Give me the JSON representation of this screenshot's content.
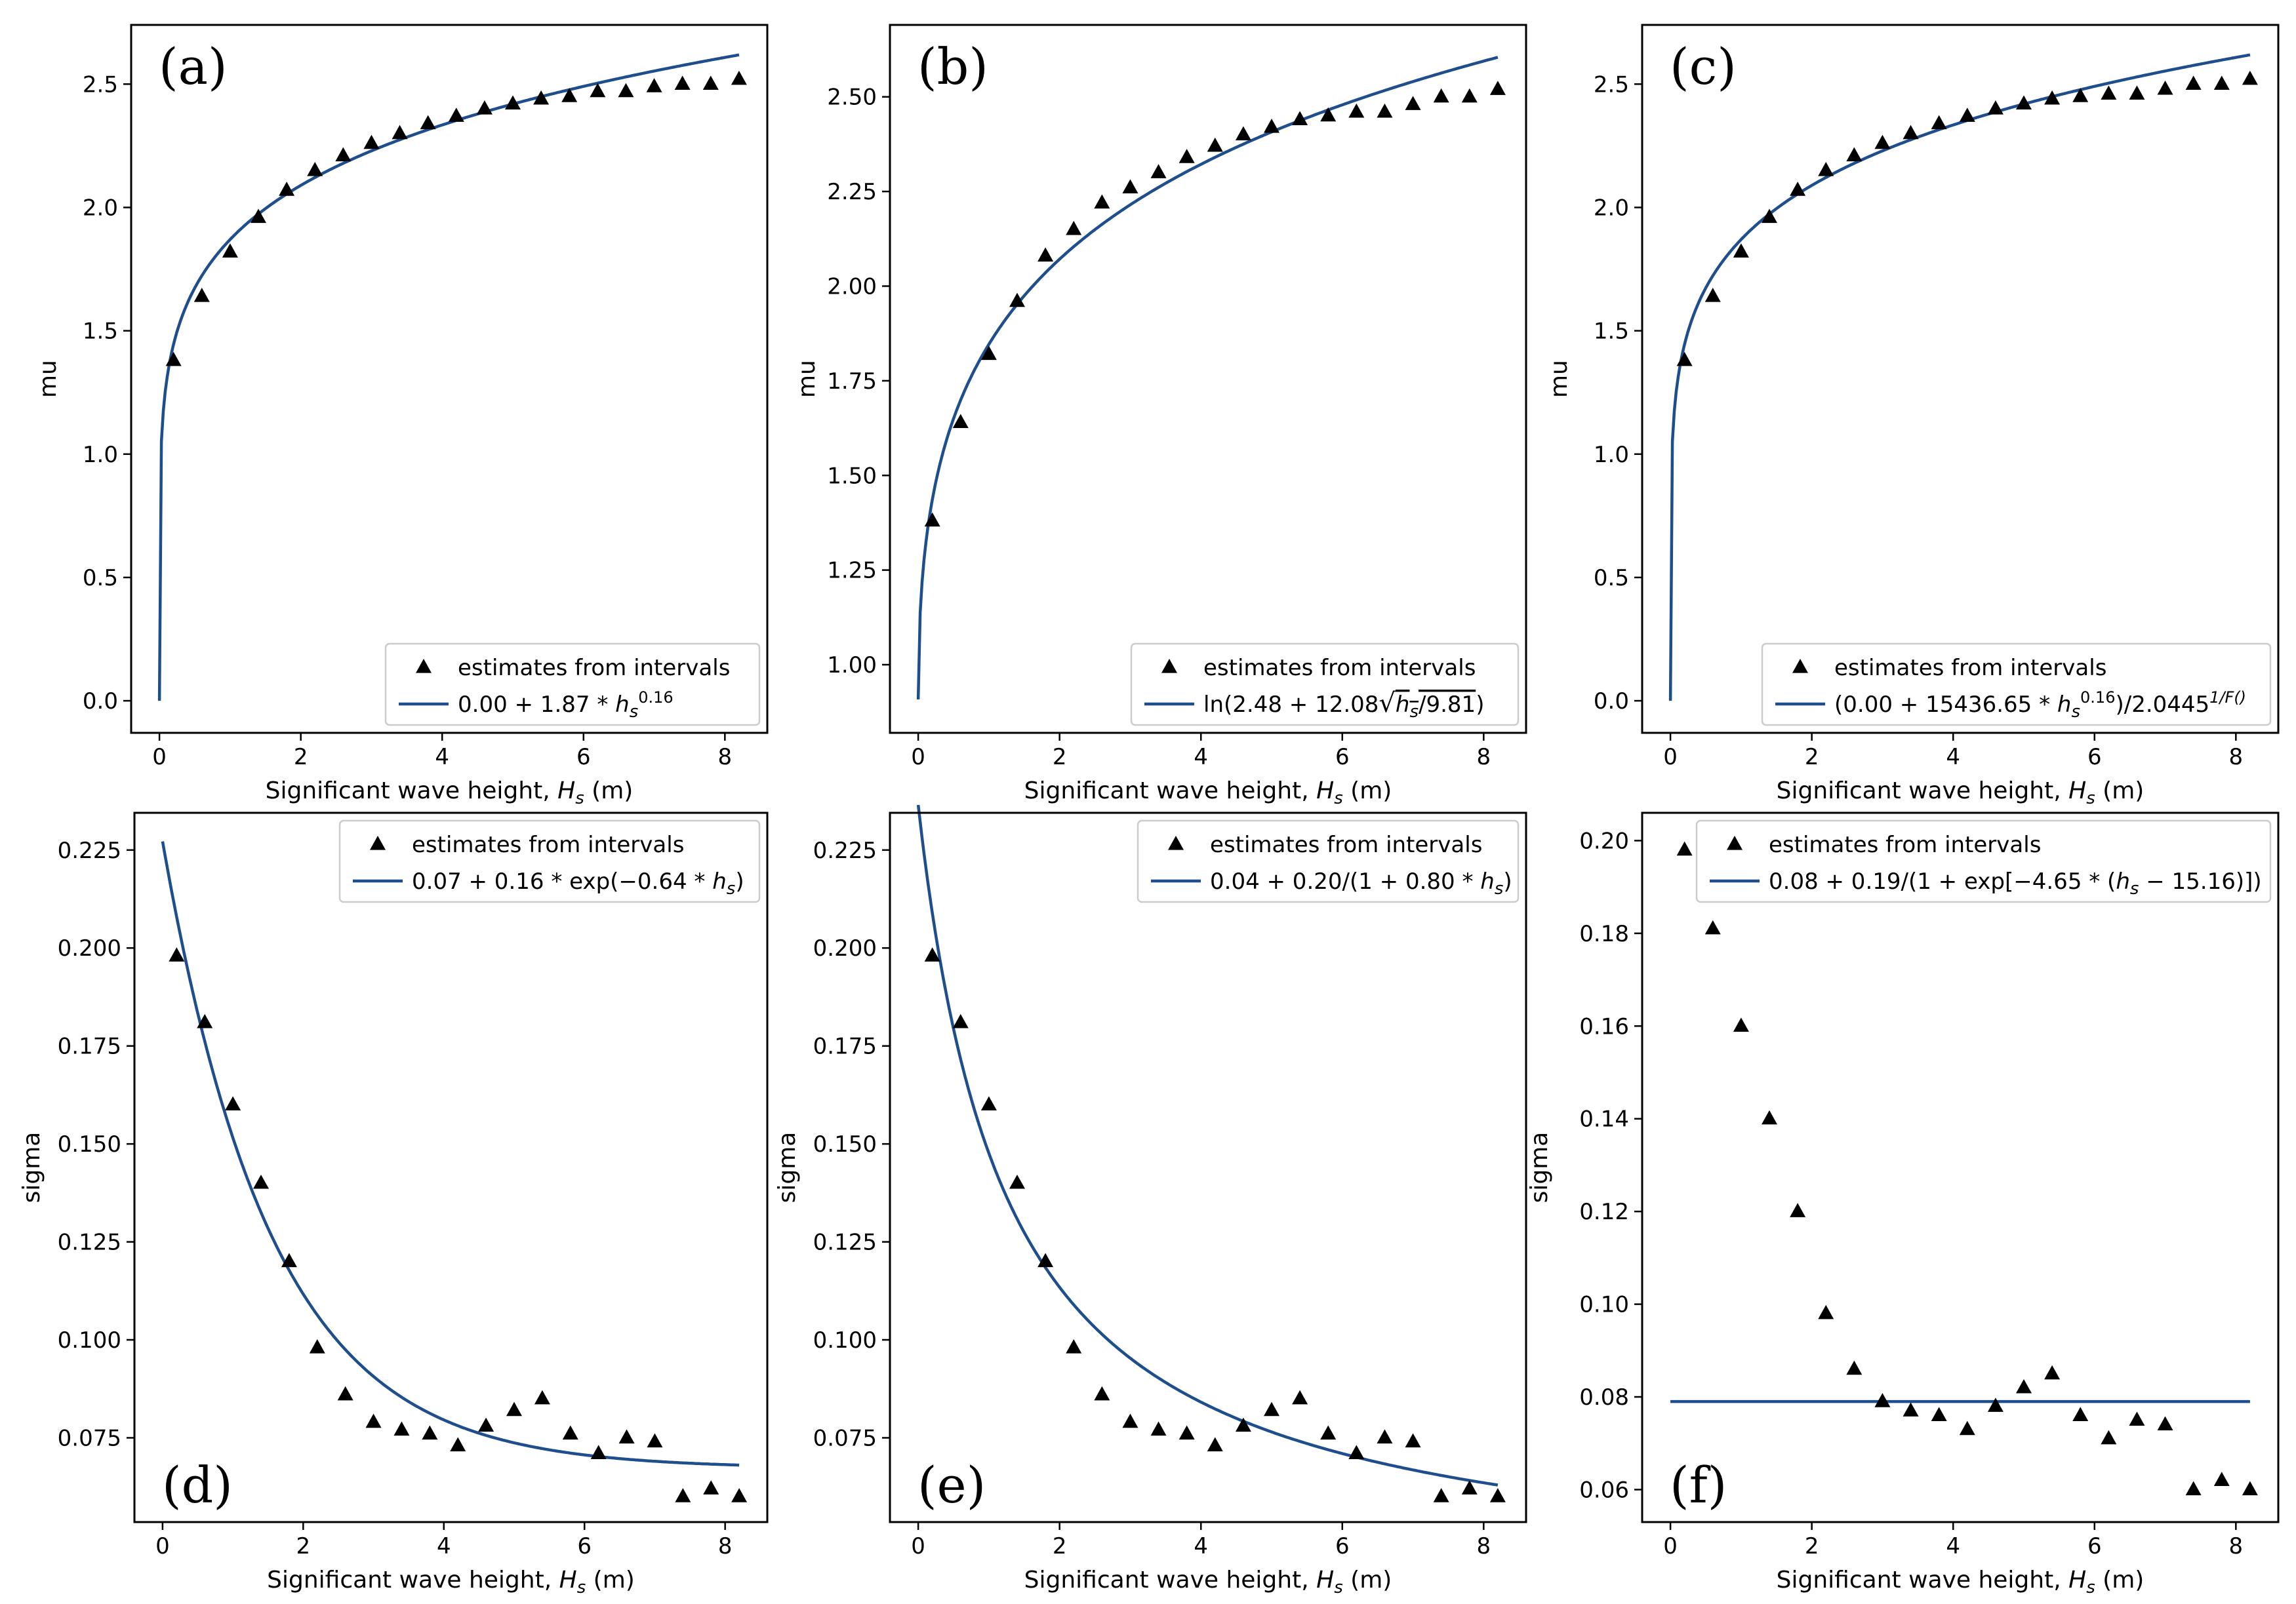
{
  "legend_points_label": "estimates from intervals",
  "colors": {
    "line": "#1f4e8c",
    "markers": "#000000",
    "axes": "#000000"
  },
  "chart_data": [
    {
      "panel": "(a)",
      "type": "scatter",
      "xlabel": "Significant wave height, H_s (m)",
      "ylabel": "mu",
      "xlim": [
        -0.4,
        8.6
      ],
      "ylim": [
        -0.13,
        2.74
      ],
      "xticks": [
        0,
        2,
        4,
        6,
        8
      ],
      "yticks": [
        0.0,
        0.5,
        1.0,
        1.5,
        2.0,
        2.5
      ],
      "ytick_labels": [
        "0.0",
        "0.5",
        "1.0",
        "1.5",
        "2.0",
        "2.5"
      ],
      "legend_position": "bottom-right",
      "series": [
        {
          "name": "estimates from intervals",
          "type": "scatter",
          "x": [
            0.2,
            0.6,
            1.0,
            1.4,
            1.8,
            2.2,
            2.6,
            3.0,
            3.4,
            3.8,
            4.2,
            4.6,
            5.0,
            5.4,
            5.8,
            6.2,
            6.6,
            7.0,
            7.4,
            7.8,
            8.2
          ],
          "y": [
            1.38,
            1.64,
            1.82,
            1.96,
            2.07,
            2.15,
            2.21,
            2.26,
            2.3,
            2.34,
            2.37,
            2.4,
            2.42,
            2.44,
            2.45,
            2.47,
            2.47,
            2.49,
            2.5,
            2.5,
            2.52
          ]
        },
        {
          "name": "0.00 + 1.87 * h_s^0.16",
          "type": "line",
          "formula": {
            "kind": "power",
            "a": 0.0,
            "b": 1.87,
            "c": 0.16
          },
          "x_range": [
            0.0,
            8.2
          ]
        }
      ]
    },
    {
      "panel": "(b)",
      "type": "scatter",
      "xlabel": "Significant wave height, H_s (m)",
      "ylabel": "mu",
      "xlim": [
        -0.4,
        8.6
      ],
      "ylim": [
        0.82,
        2.69
      ],
      "xticks": [
        0,
        2,
        4,
        6,
        8
      ],
      "yticks": [
        1.0,
        1.25,
        1.5,
        1.75,
        2.0,
        2.25,
        2.5
      ],
      "ytick_labels": [
        "1.00",
        "1.25",
        "1.50",
        "1.75",
        "2.00",
        "2.25",
        "2.50"
      ],
      "legend_position": "bottom-right",
      "series": [
        {
          "name": "estimates from intervals",
          "type": "scatter",
          "x": [
            0.2,
            0.6,
            1.0,
            1.4,
            1.8,
            2.2,
            2.6,
            3.0,
            3.4,
            3.8,
            4.2,
            4.6,
            5.0,
            5.4,
            5.8,
            6.2,
            6.6,
            7.0,
            7.4,
            7.8,
            8.2
          ],
          "y": [
            1.38,
            1.64,
            1.82,
            1.96,
            2.08,
            2.15,
            2.22,
            2.26,
            2.3,
            2.34,
            2.37,
            2.4,
            2.42,
            2.44,
            2.45,
            2.46,
            2.46,
            2.48,
            2.5,
            2.5,
            2.52
          ]
        },
        {
          "name": "ln(2.48 + 12.08 √(h_s/9.81))",
          "type": "line",
          "formula": {
            "kind": "logsqrt",
            "a": 2.48,
            "b": 12.08,
            "g": 9.81
          },
          "x_range": [
            0.0,
            8.2
          ]
        }
      ]
    },
    {
      "panel": "(c)",
      "type": "scatter",
      "xlabel": "Significant wave height, H_s (m)",
      "ylabel": "mu",
      "xlim": [
        -0.4,
        8.6
      ],
      "ylim": [
        -0.13,
        2.74
      ],
      "xticks": [
        0,
        2,
        4,
        6,
        8
      ],
      "yticks": [
        0.0,
        0.5,
        1.0,
        1.5,
        2.0,
        2.5
      ],
      "ytick_labels": [
        "0.0",
        "0.5",
        "1.0",
        "1.5",
        "2.0",
        "2.5"
      ],
      "legend_position": "bottom-right",
      "series": [
        {
          "name": "estimates from intervals",
          "type": "scatter",
          "x": [
            0.2,
            0.6,
            1.0,
            1.4,
            1.8,
            2.2,
            2.6,
            3.0,
            3.4,
            3.8,
            4.2,
            4.6,
            5.0,
            5.4,
            5.8,
            6.2,
            6.6,
            7.0,
            7.4,
            7.8,
            8.2
          ],
          "y": [
            1.38,
            1.64,
            1.82,
            1.96,
            2.07,
            2.15,
            2.21,
            2.26,
            2.3,
            2.34,
            2.37,
            2.4,
            2.42,
            2.44,
            2.45,
            2.46,
            2.46,
            2.48,
            2.5,
            2.5,
            2.52
          ]
        },
        {
          "name": "(0.00 + 15436.65 * h_s^0.16)/2.0445^(1/F())",
          "type": "line",
          "formula": {
            "kind": "power",
            "a": 0.0,
            "b": 1.87,
            "c": 0.16
          },
          "x_range": [
            0.0,
            8.2
          ]
        }
      ]
    },
    {
      "panel": "(d)",
      "type": "scatter",
      "xlabel": "Significant wave height, H_s (m)",
      "ylabel": "sigma",
      "xlim": [
        -0.4,
        8.6
      ],
      "ylim": [
        0.0535,
        0.2345
      ],
      "xticks": [
        0,
        2,
        4,
        6,
        8
      ],
      "yticks": [
        0.075,
        0.1,
        0.125,
        0.15,
        0.175,
        0.2,
        0.225
      ],
      "ytick_labels": [
        "0.075",
        "0.100",
        "0.125",
        "0.150",
        "0.175",
        "0.200",
        "0.225"
      ],
      "legend_position": "top-right",
      "series": [
        {
          "name": "estimates from intervals",
          "type": "scatter",
          "x": [
            0.2,
            0.6,
            1.0,
            1.4,
            1.8,
            2.2,
            2.6,
            3.0,
            3.4,
            3.8,
            4.2,
            4.6,
            5.0,
            5.4,
            5.8,
            6.2,
            6.6,
            7.0,
            7.4,
            7.8,
            8.2
          ],
          "y": [
            0.198,
            0.181,
            0.16,
            0.14,
            0.12,
            0.098,
            0.086,
            0.079,
            0.077,
            0.076,
            0.073,
            0.078,
            0.082,
            0.085,
            0.076,
            0.071,
            0.075,
            0.074,
            0.06,
            0.062,
            0.06
          ]
        },
        {
          "name": "0.07 + 0.16 * exp(−0.64 * h_s)",
          "type": "line",
          "formula": {
            "kind": "exp",
            "a": 0.0672,
            "b": 0.16,
            "c": 0.64
          },
          "x_range": [
            0.0,
            8.2
          ]
        }
      ]
    },
    {
      "panel": "(e)",
      "type": "scatter",
      "xlabel": "Significant wave height, H_s (m)",
      "ylabel": "sigma",
      "xlim": [
        -0.4,
        8.6
      ],
      "ylim": [
        0.0535,
        0.2345
      ],
      "xticks": [
        0,
        2,
        4,
        6,
        8
      ],
      "yticks": [
        0.075,
        0.1,
        0.125,
        0.15,
        0.175,
        0.2,
        0.225
      ],
      "ytick_labels": [
        "0.075",
        "0.100",
        "0.125",
        "0.150",
        "0.175",
        "0.200",
        "0.225"
      ],
      "legend_position": "top-right",
      "series": [
        {
          "name": "estimates from intervals",
          "type": "scatter",
          "x": [
            0.2,
            0.6,
            1.0,
            1.4,
            1.8,
            2.2,
            2.6,
            3.0,
            3.4,
            3.8,
            4.2,
            4.6,
            5.0,
            5.4,
            5.8,
            6.2,
            6.6,
            7.0,
            7.4,
            7.8,
            8.2
          ],
          "y": [
            0.198,
            0.181,
            0.16,
            0.14,
            0.12,
            0.098,
            0.086,
            0.079,
            0.077,
            0.076,
            0.073,
            0.078,
            0.082,
            0.085,
            0.076,
            0.071,
            0.075,
            0.074,
            0.06,
            0.062,
            0.06
          ]
        },
        {
          "name": "0.04 + 0.20/(1 + 0.80 * h_s)",
          "type": "line",
          "formula": {
            "kind": "recip",
            "a": 0.0365,
            "b": 0.2,
            "c": 0.8
          },
          "x_range": [
            0.0,
            8.2
          ]
        }
      ]
    },
    {
      "panel": "(f)",
      "type": "scatter",
      "xlabel": "Significant wave height, H_s (m)",
      "ylabel": "sigma",
      "xlim": [
        -0.4,
        8.6
      ],
      "ylim": [
        0.053,
        0.206
      ],
      "xticks": [
        0,
        2,
        4,
        6,
        8
      ],
      "yticks": [
        0.06,
        0.08,
        0.1,
        0.12,
        0.14,
        0.16,
        0.18,
        0.2
      ],
      "ytick_labels": [
        "0.06",
        "0.08",
        "0.10",
        "0.12",
        "0.14",
        "0.16",
        "0.18",
        "0.20"
      ],
      "legend_position": "top-right",
      "series": [
        {
          "name": "estimates from intervals",
          "type": "scatter",
          "x": [
            0.2,
            0.6,
            1.0,
            1.4,
            1.8,
            2.2,
            2.6,
            3.0,
            3.4,
            3.8,
            4.2,
            4.6,
            5.0,
            5.4,
            5.8,
            6.2,
            6.6,
            7.0,
            7.4,
            7.8,
            8.2
          ],
          "y": [
            0.198,
            0.181,
            0.16,
            0.14,
            0.12,
            0.098,
            0.086,
            0.079,
            0.077,
            0.076,
            0.073,
            0.078,
            0.082,
            0.085,
            0.076,
            0.071,
            0.075,
            0.074,
            0.06,
            0.062,
            0.06
          ]
        },
        {
          "name": "0.08 + 0.19/(1 + exp[−4.65 * (h_s − 15.16)])",
          "type": "line",
          "formula": {
            "kind": "logistic",
            "a": 0.079,
            "b": 0.19,
            "k": 4.65,
            "x0": 15.16
          },
          "x_range": [
            0.0,
            8.2
          ]
        }
      ]
    }
  ],
  "legend_lines": [
    [
      {
        "t": "0.00 + 1.87 * "
      },
      {
        "t": "h",
        "i": true
      },
      {
        "t": "s",
        "i": true,
        "sub": true
      },
      {
        "t": "0.16",
        "sup": true
      }
    ],
    [
      {
        "t": "ln(2.48 + 12.08"
      },
      {
        "t": "√",
        "rad": true
      },
      {
        "t": "h",
        "i": true,
        "over": true
      },
      {
        "t": "s",
        "i": true,
        "sub": true,
        "over": true
      },
      {
        "t": "/9.81",
        "over": true
      },
      {
        "t": ")"
      }
    ],
    [
      {
        "t": "(0.00 + 15436.65 * "
      },
      {
        "t": "h",
        "i": true
      },
      {
        "t": "s",
        "i": true,
        "sub": true
      },
      {
        "t": "0.16",
        "sup": true
      },
      {
        "t": ")/2.0445"
      },
      {
        "t": "1/F()",
        "sup": true,
        "i": true
      }
    ],
    [
      {
        "t": "0.07 + 0.16 * exp(−0.64 * "
      },
      {
        "t": "h",
        "i": true
      },
      {
        "t": "s",
        "i": true,
        "sub": true
      },
      {
        "t": ")"
      }
    ],
    [
      {
        "t": "0.04 + 0.20/(1 + 0.80 * "
      },
      {
        "t": "h",
        "i": true
      },
      {
        "t": "s",
        "i": true,
        "sub": true
      },
      {
        "t": ")"
      }
    ],
    [
      {
        "t": "0.08 + 0.19/(1 + exp[−4.65 * ("
      },
      {
        "t": "h",
        "i": true
      },
      {
        "t": "s",
        "i": true,
        "sub": true
      },
      {
        "t": " − 15.16)])"
      }
    ]
  ]
}
